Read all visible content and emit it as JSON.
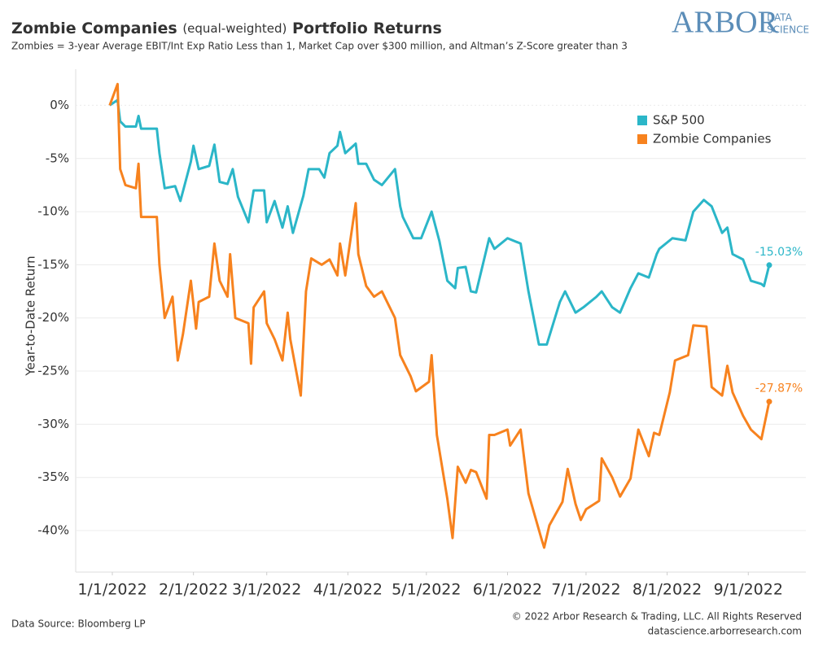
{
  "chart_data": {
    "type": "line",
    "title": "Zombie Companies",
    "title_note": "(equal-weighted)",
    "title_end": "Portfolio Returns",
    "subtitle": "Zombies = 3-year Average EBIT/Int Exp Ratio Less than 1, Market Cap over $300 million, and Altman’s Z-Score greater than 3",
    "ylabel": "Year-to-Date Return",
    "logo": {
      "main": "ARBOR",
      "line1": "DATA",
      "line2": "SCIENCE"
    },
    "source": "Data Source: Bloomberg LP",
    "copyright": "© 2022 Arbor Research & Trading, LLC. All Rights Reserved",
    "website": "datascience.arborresearch.com",
    "xlim": [
      "12/18/2021",
      "9/23/2022"
    ],
    "xticks": [
      "1/1/2022",
      "2/1/2022",
      "3/1/2022",
      "4/1/2022",
      "5/1/2022",
      "6/1/2022",
      "7/1/2022",
      "8/1/2022",
      "9/1/2022"
    ],
    "ylim": [
      -43.9,
      3.4
    ],
    "yticks": [
      {
        "value": 0,
        "label": "0%"
      },
      {
        "value": -5,
        "label": "-5%"
      },
      {
        "value": -10,
        "label": "-10%"
      },
      {
        "value": -15,
        "label": "-15%"
      },
      {
        "value": -20,
        "label": "-20%"
      },
      {
        "value": -25,
        "label": "-25%"
      },
      {
        "value": -30,
        "label": "-30%"
      },
      {
        "value": -35,
        "label": "-35%"
      },
      {
        "value": -40,
        "label": "-40%"
      }
    ],
    "grid": true,
    "legend": "top-right",
    "series": [
      {
        "name": "S&P 500",
        "color": "#2bb6c8",
        "end_label": "-15.03%",
        "x": [
          "12/31/2021",
          "1/3/2022",
          "1/4/2022",
          "1/6/2022",
          "1/10/2022",
          "1/11/2022",
          "1/12/2022",
          "1/18/2022",
          "1/19/2022",
          "1/21/2022",
          "1/25/2022",
          "1/27/2022",
          "1/31/2022",
          "2/1/2022",
          "2/3/2022",
          "2/7/2022",
          "2/9/2022",
          "2/11/2022",
          "2/14/2022",
          "2/16/2022",
          "2/18/2022",
          "2/22/2022",
          "2/24/2022",
          "2/28/2022",
          "3/1/2022",
          "3/4/2022",
          "3/7/2022",
          "3/9/2022",
          "3/11/2022",
          "3/15/2022",
          "3/17/2022",
          "3/21/2022",
          "3/23/2022",
          "3/25/2022",
          "3/28/2022",
          "3/29/2022",
          "3/31/2022",
          "4/4/2022",
          "4/5/2022",
          "4/8/2022",
          "4/11/2022",
          "4/14/2022",
          "4/19/2022",
          "4/21/2022",
          "4/22/2022",
          "4/26/2022",
          "4/29/2022",
          "5/3/2022",
          "5/6/2022",
          "5/9/2022",
          "5/12/2022",
          "5/13/2022",
          "5/16/2022",
          "5/18/2022",
          "5/20/2022",
          "5/25/2022",
          "5/27/2022",
          "6/1/2022",
          "6/6/2022",
          "6/9/2022",
          "6/13/2022",
          "6/16/2022",
          "6/21/2022",
          "6/23/2022",
          "6/27/2022",
          "6/30/2022",
          "7/5/2022",
          "7/7/2022",
          "7/11/2022",
          "7/14/2022",
          "7/18/2022",
          "7/21/2022",
          "7/25/2022",
          "7/28/2022",
          "7/29/2022",
          "8/3/2022",
          "8/8/2022",
          "8/11/2022",
          "8/15/2022",
          "8/18/2022",
          "8/22/2022",
          "8/24/2022",
          "8/26/2022",
          "8/30/2022",
          "9/2/2022",
          "9/6/2022",
          "9/7/2022",
          "9/9/2022"
        ],
        "values": [
          0,
          0.5,
          -1.5,
          -2,
          -2,
          -1.0,
          -2.2,
          -2.2,
          -4.5,
          -7.8,
          -7.6,
          -9.0,
          -5.3,
          -3.8,
          -6,
          -5.7,
          -3.7,
          -7.2,
          -7.4,
          -6.0,
          -8.6,
          -11.0,
          -8.0,
          -8.0,
          -11.0,
          -9.0,
          -11.5,
          -9.5,
          -12.0,
          -8.5,
          -6.0,
          -6.0,
          -6.8,
          -4.5,
          -3.8,
          -2.5,
          -4.5,
          -3.6,
          -5.5,
          -5.5,
          -7.0,
          -7.5,
          -6.0,
          -9.5,
          -10.5,
          -12.5,
          -12.5,
          -10.0,
          -12.8,
          -16.5,
          -17.2,
          -15.3,
          -15.2,
          -17.5,
          -17.6,
          -12.5,
          -13.5,
          -12.5,
          -13.0,
          -17.5,
          -22.5,
          -22.5,
          -18.5,
          -17.5,
          -19.5,
          -19.0,
          -18.0,
          -17.5,
          -19.0,
          -19.5,
          -17.2,
          -15.8,
          -16.2,
          -14.0,
          -13.5,
          -12.5,
          -12.7,
          -10.0,
          -8.9,
          -9.5,
          -12.0,
          -11.5,
          -14.0,
          -14.5,
          -16.5,
          -16.8,
          -17.0,
          -15.03
        ]
      },
      {
        "name": "Zombie Companies",
        "color": "#f7821e",
        "end_label": "-27.87%",
        "x": [
          "12/31/2021",
          "1/3/2022",
          "1/4/2022",
          "1/6/2022",
          "1/10/2022",
          "1/11/2022",
          "1/12/2022",
          "1/18/2022",
          "1/19/2022",
          "1/21/2022",
          "1/24/2022",
          "1/26/2022",
          "1/28/2022",
          "1/31/2022",
          "2/2/2022",
          "2/3/2022",
          "2/7/2022",
          "2/9/2022",
          "2/11/2022",
          "2/14/2022",
          "2/15/2022",
          "2/17/2022",
          "2/22/2022",
          "2/23/2022",
          "2/24/2022",
          "2/28/2022",
          "3/1/2022",
          "3/4/2022",
          "3/7/2022",
          "3/9/2022",
          "3/10/2022",
          "3/14/2022",
          "3/16/2022",
          "3/18/2022",
          "3/22/2022",
          "3/25/2022",
          "3/28/2022",
          "3/29/2022",
          "3/31/2022",
          "4/4/2022",
          "4/5/2022",
          "4/8/2022",
          "4/11/2022",
          "4/14/2022",
          "4/19/2022",
          "4/21/2022",
          "4/25/2022",
          "4/27/2022",
          "5/2/2022",
          "5/3/2022",
          "5/5/2022",
          "5/9/2022",
          "5/11/2022",
          "5/13/2022",
          "5/16/2022",
          "5/18/2022",
          "5/20/2022",
          "5/24/2022",
          "5/25/2022",
          "5/27/2022",
          "6/1/2022",
          "6/2/2022",
          "6/6/2022",
          "6/9/2022",
          "6/14/2022",
          "6/15/2022",
          "6/17/2022",
          "6/22/2022",
          "6/24/2022",
          "6/27/2022",
          "6/29/2022",
          "7/1/2022",
          "7/6/2022",
          "7/7/2022",
          "7/11/2022",
          "7/14/2022",
          "7/18/2022",
          "7/19/2022",
          "7/21/2022",
          "7/25/2022",
          "7/27/2022",
          "7/29/2022",
          "8/2/2022",
          "8/4/2022",
          "8/9/2022",
          "8/11/2022",
          "8/16/2022",
          "8/18/2022",
          "8/22/2022",
          "8/24/2022",
          "8/26/2022",
          "8/30/2022",
          "9/2/2022",
          "9/6/2022",
          "9/9/2022"
        ],
        "values": [
          0,
          2,
          -6,
          -7.5,
          -7.8,
          -5.5,
          -10.5,
          -10.5,
          -15.0,
          -20,
          -18,
          -24,
          -21.5,
          -16.5,
          -21,
          -18.5,
          -18,
          -13,
          -16.5,
          -18,
          -14,
          -20,
          -20.5,
          -24.3,
          -19,
          -17.5,
          -20.5,
          -22,
          -24,
          -19.5,
          -22,
          -27.3,
          -17.5,
          -14.4,
          -15,
          -14.5,
          -16,
          -13,
          -16,
          -9.2,
          -14,
          -17,
          -18,
          -17.5,
          -20,
          -23.5,
          -25.5,
          -26.9,
          -26,
          -23.5,
          -31,
          -37,
          -40.7,
          -34,
          -35.5,
          -34.3,
          -34.5,
          -37,
          -31,
          -31,
          -30.5,
          -32,
          -30.5,
          -36.5,
          -40.8,
          -41.6,
          -39.5,
          -37.3,
          -34.2,
          -37.5,
          -39.0,
          -38,
          -37.2,
          -33.2,
          -35.0,
          -36.8,
          -35.1,
          -33.5,
          -30.5,
          -33.0,
          -30.8,
          -31.0,
          -27,
          -24,
          -23.5,
          -20.7,
          -20.8,
          -26.5,
          -27.3,
          -24.5,
          -27.0,
          -29.2,
          -30.5,
          -31.4,
          -27.87
        ]
      }
    ]
  }
}
